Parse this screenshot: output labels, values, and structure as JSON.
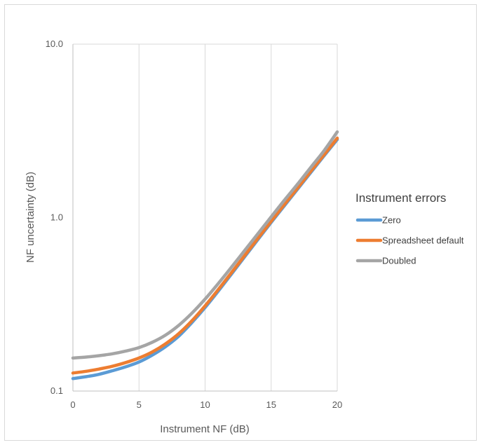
{
  "chart_data": {
    "type": "line",
    "title": "",
    "xlabel": "Instrument NF (dB)",
    "ylabel": "NF uncertainty (dB)",
    "xlim": [
      0,
      20
    ],
    "ylim": [
      0.1,
      10
    ],
    "y_scale": "log",
    "grid": "vertical",
    "x_ticks": [
      "0",
      "5",
      "10",
      "15",
      "20"
    ],
    "y_ticks": [
      "0.1",
      "1.0",
      "10.0"
    ],
    "legend_title": "Instrument errors",
    "legend_position": "right",
    "x": [
      0,
      1,
      2,
      3,
      4,
      5,
      6,
      7,
      8,
      9,
      10,
      11,
      12,
      13,
      14,
      15,
      16,
      17,
      18,
      19,
      20
    ],
    "series": [
      {
        "name": "Zero",
        "color": "#5b9bd5",
        "values": [
          0.118,
          0.121,
          0.125,
          0.131,
          0.138,
          0.147,
          0.161,
          0.18,
          0.207,
          0.248,
          0.303,
          0.377,
          0.473,
          0.595,
          0.748,
          0.938,
          1.17,
          1.46,
          1.82,
          2.27,
          2.82
        ]
      },
      {
        "name": "Spreadsheet default",
        "color": "#ed7d31",
        "values": [
          0.127,
          0.13,
          0.134,
          0.139,
          0.146,
          0.155,
          0.168,
          0.187,
          0.214,
          0.254,
          0.31,
          0.385,
          0.482,
          0.605,
          0.76,
          0.952,
          1.19,
          1.48,
          1.85,
          2.3,
          2.87
        ]
      },
      {
        "name": "Doubled",
        "color": "#a5a5a5",
        "values": [
          0.155,
          0.157,
          0.16,
          0.164,
          0.17,
          0.178,
          0.191,
          0.21,
          0.239,
          0.281,
          0.339,
          0.417,
          0.518,
          0.647,
          0.808,
          1.01,
          1.26,
          1.56,
          1.95,
          2.43,
          3.12
        ]
      }
    ]
  }
}
